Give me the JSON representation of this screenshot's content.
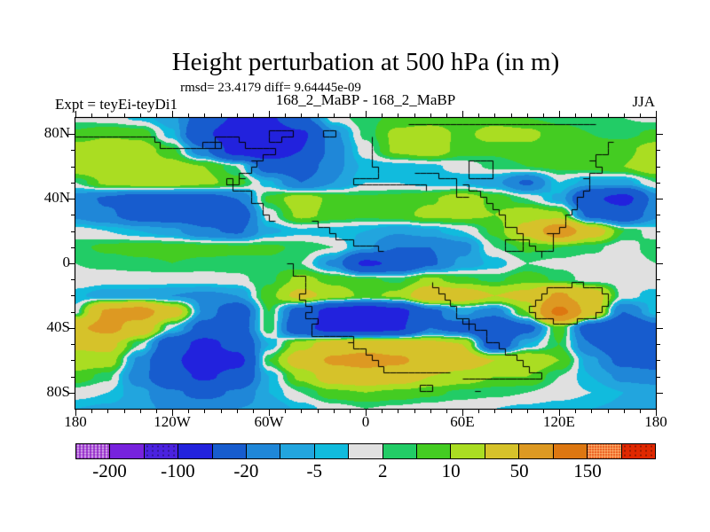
{
  "title": "Height perturbation at 500 hPa (in m)",
  "stats_line": "rmsd= 23.4179 diff= 9.64445e-09",
  "expt_pair": "168_2_MaBP - 168_2_MaBP",
  "expt_label": "Expt = teyEi-teyDi1",
  "season_label": "JJA",
  "axes": {
    "lon_labels": [
      {
        "text": "180",
        "lon": -180
      },
      {
        "text": "120W",
        "lon": -120
      },
      {
        "text": "60W",
        "lon": -60
      },
      {
        "text": "0",
        "lon": 0
      },
      {
        "text": "60E",
        "lon": 60
      },
      {
        "text": "120E",
        "lon": 120
      },
      {
        "text": "180",
        "lon": 180
      }
    ],
    "lat_labels": [
      {
        "text": "80N",
        "lat": 80
      },
      {
        "text": "40N",
        "lat": 40
      },
      {
        "text": "0",
        "lat": 0
      },
      {
        "text": "40S",
        "lat": -40
      },
      {
        "text": "80S",
        "lat": -80
      }
    ],
    "lon_range": [
      -180,
      180
    ],
    "lat_range": [
      -90,
      90
    ],
    "minor_tick_deg": 10,
    "major_tick_lon_deg": 60,
    "major_tick_lat_deg": 40
  },
  "colorbar": {
    "segments": [
      {
        "color": "#9933CC",
        "stipple": "light"
      },
      {
        "color": "#7722DD",
        "stipple": null
      },
      {
        "color": "#4B22DF",
        "stipple": "dark"
      },
      {
        "color": "#2222DD",
        "stipple": null
      },
      {
        "color": "#175CCE",
        "stipple": null
      },
      {
        "color": "#1F87D8",
        "stipple": null
      },
      {
        "color": "#22A5DE",
        "stipple": null
      },
      {
        "color": "#11BBDD",
        "stipple": null
      },
      {
        "color": "#E0E0E0",
        "stipple": null
      },
      {
        "color": "#22CC66",
        "stipple": null
      },
      {
        "color": "#44CC22",
        "stipple": null
      },
      {
        "color": "#AADD22",
        "stipple": null
      },
      {
        "color": "#D6C22A",
        "stipple": null
      },
      {
        "color": "#DD9922",
        "stipple": null
      },
      {
        "color": "#DD7711",
        "stipple": null
      },
      {
        "color": "#E84C0F",
        "stipple": "warm"
      },
      {
        "color": "#E02800",
        "stipple": "dark"
      }
    ],
    "labels": [
      {
        "text": "-200",
        "boundary": 1
      },
      {
        "text": "-100",
        "boundary": 3
      },
      {
        "text": "-20",
        "boundary": 5
      },
      {
        "text": "-5",
        "boundary": 7
      },
      {
        "text": "2",
        "boundary": 9
      },
      {
        "text": "10",
        "boundary": 11
      },
      {
        "text": "50",
        "boundary": 13
      },
      {
        "text": "150",
        "boundary": 15
      }
    ]
  },
  "chart_data": {
    "type": "heatmap",
    "title": "Height perturbation at 500 hPa (in m)",
    "subtitle": "168_2_MaBP - 168_2_MaBP, JJA, Expt = teyEi-teyDi1",
    "rmsd": 23.4179,
    "diff": 9.64445e-09,
    "units": "m",
    "levels": [
      -200,
      -150,
      -100,
      -50,
      -20,
      -10,
      -5,
      -2,
      2,
      5,
      10,
      20,
      50,
      100,
      150,
      200
    ],
    "palette": [
      "#9933CC",
      "#7722DD",
      "#4B22DF",
      "#2222DD",
      "#175CCE",
      "#1F87D8",
      "#22A5DE",
      "#11BBDD",
      "#E0E0E0",
      "#22CC66",
      "#44CC22",
      "#AADD22",
      "#D6C22A",
      "#DD9922",
      "#DD7711",
      "#E84C0F",
      "#E02800"
    ],
    "lons": [
      -180,
      -160,
      -140,
      -120,
      -100,
      -80,
      -60,
      -40,
      -20,
      0,
      20,
      40,
      60,
      80,
      100,
      120,
      140,
      160,
      180
    ],
    "lats": [
      90,
      80,
      70,
      60,
      50,
      40,
      30,
      20,
      10,
      0,
      -10,
      -20,
      -30,
      -40,
      -50,
      -60,
      -70,
      -80,
      -90
    ],
    "values": [
      [
        1,
        0,
        -3,
        -8,
        -30,
        -55,
        -55,
        -25,
        0,
        4,
        6,
        6,
        5,
        6,
        5,
        4,
        3,
        2,
        1
      ],
      [
        6,
        9,
        8,
        -4,
        -45,
        -75,
        -70,
        -55,
        -12,
        3,
        12,
        15,
        8,
        14,
        12,
        7,
        5,
        4,
        6
      ],
      [
        14,
        16,
        14,
        6,
        -18,
        -65,
        -80,
        -50,
        -14,
        0,
        12,
        16,
        7,
        6,
        8,
        7,
        6,
        8,
        14
      ],
      [
        17,
        18,
        16,
        13,
        10,
        2,
        -28,
        -30,
        -12,
        -4,
        -4,
        -3,
        0,
        3,
        5,
        6,
        7,
        10,
        17
      ],
      [
        2,
        12,
        15,
        15,
        12,
        7,
        -4,
        -20,
        -10,
        -2,
        -2,
        -4,
        -5,
        -8,
        -22,
        -2,
        -7,
        -7,
        2
      ],
      [
        -14,
        -22,
        -30,
        -30,
        -28,
        -20,
        6,
        15,
        8,
        6,
        7,
        9,
        15,
        8,
        2,
        -6,
        -45,
        -60,
        -14
      ],
      [
        -12,
        -18,
        -28,
        -30,
        -30,
        -32,
        0,
        12,
        8,
        6,
        8,
        12,
        12,
        10,
        16,
        12,
        -25,
        -35,
        -12
      ],
      [
        0,
        -2,
        -5,
        -8,
        -18,
        -22,
        -6,
        -3,
        -4,
        -5,
        -9,
        -6,
        -2,
        6,
        25,
        75,
        30,
        5,
        0
      ],
      [
        4,
        6,
        7,
        7,
        7,
        6,
        6,
        4,
        2,
        -8,
        -20,
        -20,
        -13,
        2,
        6,
        5,
        3,
        0,
        4
      ],
      [
        2,
        3,
        4,
        5,
        4,
        4,
        4,
        2,
        -12,
        -55,
        -45,
        -22,
        -8,
        -4,
        2,
        1,
        0,
        0,
        2
      ],
      [
        1,
        0,
        0,
        0,
        0,
        1,
        4,
        12,
        8,
        6,
        4,
        12,
        6,
        4,
        8,
        4,
        0,
        0,
        1
      ],
      [
        -4,
        -8,
        -8,
        -10,
        -12,
        -10,
        8,
        25,
        15,
        8,
        12,
        35,
        30,
        20,
        25,
        55,
        30,
        0,
        -4
      ],
      [
        0,
        55,
        65,
        30,
        -12,
        -35,
        5,
        -30,
        -65,
        -75,
        -60,
        -25,
        -8,
        -15,
        10,
        115,
        30,
        -20,
        -3
      ],
      [
        45,
        60,
        35,
        -2,
        -28,
        -32,
        5,
        -40,
        -65,
        -65,
        -55,
        -20,
        -28,
        -45,
        -25,
        8,
        -32,
        -45,
        -25
      ],
      [
        22,
        25,
        2,
        -35,
        -60,
        -40,
        -5,
        15,
        30,
        35,
        30,
        25,
        20,
        -35,
        -5,
        5,
        -20,
        -40,
        -35
      ],
      [
        15,
        15,
        -12,
        -45,
        -70,
        -60,
        5,
        30,
        55,
        62,
        55,
        38,
        30,
        20,
        20,
        10,
        -8,
        -25,
        -28
      ],
      [
        8,
        3,
        -15,
        -40,
        -55,
        -40,
        -5,
        12,
        30,
        35,
        30,
        20,
        15,
        10,
        10,
        2,
        -5,
        -12,
        -15
      ],
      [
        0,
        -2,
        -8,
        -18,
        -25,
        -18,
        -5,
        2,
        8,
        10,
        8,
        6,
        4,
        3,
        2,
        0,
        -2,
        -5,
        -5
      ],
      [
        -5,
        -6,
        -8,
        -12,
        -12,
        -10,
        -8,
        -4,
        0,
        2,
        1,
        0,
        -1,
        -2,
        -3,
        -4,
        -5,
        -6,
        -6
      ]
    ],
    "coastlines": [
      [
        [
          -180,
          80
        ],
        [
          -132,
          80
        ],
        [
          -128,
          73
        ],
        [
          -96,
          73
        ],
        [
          -92,
          78
        ],
        [
          -80,
          78
        ],
        [
          -76,
          72
        ],
        [
          -60,
          72
        ],
        [
          -56,
          67
        ]
      ],
      [
        [
          -56,
          67
        ],
        [
          -72,
          64
        ],
        [
          -66,
          59
        ],
        [
          -80,
          57
        ],
        [
          -74,
          51
        ],
        [
          -86,
          49
        ],
        [
          -80,
          44
        ],
        [
          -70,
          43
        ],
        [
          -72,
          37
        ],
        [
          -62,
          35
        ],
        [
          -64,
          29
        ],
        [
          -58,
          26
        ]
      ],
      [
        [
          -88,
          52
        ],
        [
          -83,
          52
        ],
        [
          -83,
          48
        ],
        [
          -88,
          48
        ],
        [
          -88,
          52
        ]
      ],
      [
        [
          -100,
          75
        ],
        [
          -89,
          75
        ],
        [
          -89,
          70
        ],
        [
          -100,
          70
        ],
        [
          -100,
          75
        ]
      ],
      [
        [
          -59,
          84
        ],
        [
          -44,
          84
        ],
        [
          -44,
          79
        ],
        [
          -51,
          79
        ],
        [
          -51,
          75
        ],
        [
          -59,
          75
        ],
        [
          -59,
          84
        ]
      ],
      [
        [
          -27,
          81
        ],
        [
          -18,
          81
        ],
        [
          -18,
          77
        ],
        [
          -27,
          77
        ],
        [
          -27,
          81
        ]
      ],
      [
        [
          3,
          77
        ],
        [
          3,
          63
        ],
        [
          8,
          58
        ],
        [
          8,
          53
        ],
        [
          -8,
          52
        ],
        [
          -8,
          47
        ],
        [
          10,
          47
        ],
        [
          18,
          49
        ],
        [
          28,
          47
        ],
        [
          36,
          47
        ],
        [
          36,
          44
        ]
      ],
      [
        [
          30,
          57
        ],
        [
          44,
          57
        ],
        [
          44,
          51
        ],
        [
          58,
          51
        ],
        [
          58,
          43
        ],
        [
          64,
          40
        ]
      ],
      [
        [
          -34,
          25
        ],
        [
          -26,
          21
        ],
        [
          -18,
          16
        ],
        [
          -8,
          13
        ],
        [
          2,
          10
        ],
        [
          10,
          7
        ]
      ],
      [
        [
          62,
          62
        ],
        [
          78,
          62
        ],
        [
          78,
          54
        ],
        [
          62,
          54
        ],
        [
          62,
          62
        ]
      ],
      [
        [
          60,
          47
        ],
        [
          68,
          44
        ],
        [
          74,
          38
        ],
        [
          82,
          30
        ],
        [
          88,
          22
        ],
        [
          96,
          14
        ],
        [
          104,
          8
        ],
        [
          110,
          4
        ]
      ],
      [
        [
          88,
          16
        ],
        [
          97,
          16
        ],
        [
          97,
          8
        ],
        [
          88,
          8
        ],
        [
          88,
          16
        ]
      ],
      [
        [
          152,
          74
        ],
        [
          149,
          67
        ],
        [
          140,
          63
        ],
        [
          146,
          57
        ],
        [
          136,
          51
        ],
        [
          139,
          44
        ],
        [
          130,
          39
        ],
        [
          133,
          33
        ],
        [
          122,
          29
        ],
        [
          125,
          21
        ],
        [
          114,
          17
        ],
        [
          117,
          9
        ],
        [
          108,
          5
        ]
      ],
      [
        [
          28,
          87
        ],
        [
          70,
          87
        ],
        [
          70,
          85
        ],
        [
          118,
          85
        ],
        [
          118,
          87
        ],
        [
          142,
          87
        ]
      ],
      [
        [
          -48,
          0
        ],
        [
          -44,
          -7
        ],
        [
          -38,
          -11
        ],
        [
          -36,
          -17
        ],
        [
          -41,
          -23
        ],
        [
          -34,
          -27
        ],
        [
          -37,
          -33
        ],
        [
          -30,
          -37
        ],
        [
          -34,
          -41
        ],
        [
          -34,
          -44
        ],
        [
          -6,
          -44
        ],
        [
          -6,
          -47
        ],
        [
          -12,
          -50
        ],
        [
          -4,
          -54
        ],
        [
          2,
          -58
        ],
        [
          8,
          -62
        ],
        [
          13,
          -65
        ],
        [
          13,
          -67
        ],
        [
          51,
          -67
        ]
      ],
      [
        [
          40,
          -12
        ],
        [
          46,
          -17
        ],
        [
          50,
          -23
        ],
        [
          56,
          -31
        ],
        [
          62,
          -41
        ]
      ],
      [
        [
          35,
          -76
        ],
        [
          41,
          -76
        ],
        [
          41,
          -79
        ],
        [
          35,
          -79
        ],
        [
          35,
          -76
        ]
      ],
      [
        [
          59,
          -35
        ],
        [
          70,
          -42
        ],
        [
          80,
          -50
        ],
        [
          90,
          -58
        ],
        [
          100,
          -66
        ],
        [
          107,
          -72
        ],
        [
          96,
          -72
        ],
        [
          60,
          -72
        ]
      ],
      [
        [
          66,
          -77
        ],
        [
          71,
          -77
        ],
        [
          71,
          -79
        ],
        [
          66,
          -79
        ],
        [
          66,
          -77
        ]
      ],
      [
        [
          100,
          -30
        ],
        [
          104,
          -23
        ],
        [
          110,
          -18
        ],
        [
          118,
          -14
        ],
        [
          130,
          -12
        ],
        [
          140,
          -14
        ],
        [
          147,
          -18
        ],
        [
          151,
          -24
        ],
        [
          147,
          -30
        ],
        [
          139,
          -34
        ],
        [
          128,
          -37
        ],
        [
          117,
          -35
        ],
        [
          107,
          -32
        ],
        [
          100,
          -30
        ]
      ]
    ]
  }
}
